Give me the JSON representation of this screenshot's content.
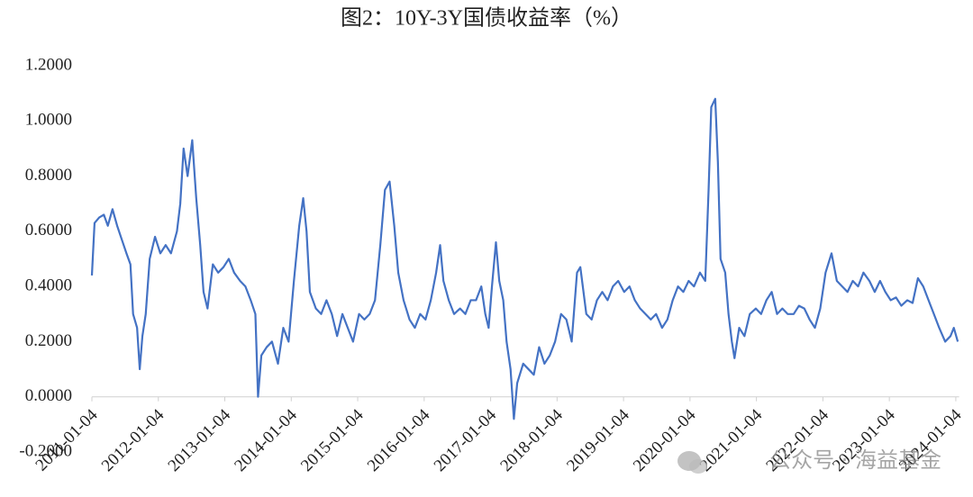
{
  "chart_data": {
    "type": "line",
    "title": "图2：10Y-3Y国债收益率（%）",
    "watermark": "公众号 · 海益基金",
    "color": "#4472c4",
    "x": [
      2011.0,
      2011.04,
      2011.11,
      2011.18,
      2011.24,
      2011.31,
      2011.38,
      2011.45,
      2011.52,
      2011.58,
      2011.62,
      2011.68,
      2011.72,
      2011.76,
      2011.81,
      2011.87,
      2011.95,
      2012.03,
      2012.11,
      2012.19,
      2012.28,
      2012.33,
      2012.38,
      2012.44,
      2012.51,
      2012.57,
      2012.63,
      2012.68,
      2012.74,
      2012.82,
      2012.9,
      2012.98,
      2013.06,
      2013.14,
      2013.23,
      2013.31,
      2013.39,
      2013.46,
      2013.5,
      2013.55,
      2013.63,
      2013.71,
      2013.8,
      2013.88,
      2013.96,
      2014.04,
      2014.12,
      2014.18,
      2014.23,
      2014.28,
      2014.37,
      2014.45,
      2014.53,
      2014.61,
      2014.69,
      2014.77,
      2014.85,
      2014.93,
      2015.02,
      2015.1,
      2015.18,
      2015.26,
      2015.34,
      2015.41,
      2015.48,
      2015.55,
      2015.61,
      2015.69,
      2015.78,
      2015.86,
      2015.94,
      2016.02,
      2016.1,
      2016.18,
      2016.24,
      2016.29,
      2016.37,
      2016.45,
      2016.54,
      2016.62,
      2016.7,
      2016.78,
      2016.86,
      2016.92,
      2016.97,
      2017.02,
      2017.08,
      2017.13,
      2017.19,
      2017.24,
      2017.3,
      2017.35,
      2017.4,
      2017.49,
      2017.57,
      2017.65,
      2017.73,
      2017.81,
      2017.89,
      2017.97,
      2018.06,
      2018.14,
      2018.22,
      2018.3,
      2018.35,
      2018.44,
      2018.52,
      2018.6,
      2018.68,
      2018.76,
      2018.84,
      2018.92,
      2019.01,
      2019.09,
      2019.17,
      2019.25,
      2019.33,
      2019.41,
      2019.49,
      2019.58,
      2019.66,
      2019.74,
      2019.82,
      2019.9,
      2019.98,
      2020.06,
      2020.15,
      2020.23,
      2020.28,
      2020.32,
      2020.38,
      2020.42,
      2020.46,
      2020.53,
      2020.58,
      2020.63,
      2020.67,
      2020.74,
      2020.82,
      2020.9,
      2020.99,
      2021.07,
      2021.15,
      2021.23,
      2021.31,
      2021.39,
      2021.47,
      2021.56,
      2021.64,
      2021.72,
      2021.8,
      2021.88,
      2021.96,
      2022.04,
      2022.13,
      2022.21,
      2022.29,
      2022.37,
      2022.45,
      2022.53,
      2022.61,
      2022.7,
      2022.78,
      2022.86,
      2022.94,
      2023.02,
      2023.1,
      2023.18,
      2023.27,
      2023.35,
      2023.43,
      2023.51,
      2023.59,
      2023.67,
      2023.75,
      2023.84,
      2023.92,
      2023.97,
      2024.03
    ],
    "values": [
      0.44,
      0.63,
      0.65,
      0.66,
      0.62,
      0.68,
      0.62,
      0.57,
      0.52,
      0.48,
      0.3,
      0.25,
      0.1,
      0.22,
      0.3,
      0.5,
      0.58,
      0.52,
      0.55,
      0.52,
      0.6,
      0.7,
      0.9,
      0.8,
      0.93,
      0.72,
      0.55,
      0.38,
      0.32,
      0.48,
      0.45,
      0.47,
      0.5,
      0.45,
      0.42,
      0.4,
      0.35,
      0.3,
      0.0,
      0.15,
      0.18,
      0.2,
      0.12,
      0.25,
      0.2,
      0.42,
      0.62,
      0.72,
      0.6,
      0.38,
      0.32,
      0.3,
      0.35,
      0.3,
      0.22,
      0.3,
      0.25,
      0.2,
      0.3,
      0.28,
      0.3,
      0.35,
      0.55,
      0.75,
      0.78,
      0.62,
      0.45,
      0.35,
      0.28,
      0.25,
      0.3,
      0.28,
      0.35,
      0.45,
      0.55,
      0.42,
      0.35,
      0.3,
      0.32,
      0.3,
      0.35,
      0.35,
      0.4,
      0.3,
      0.25,
      0.4,
      0.56,
      0.42,
      0.35,
      0.2,
      0.1,
      -0.08,
      0.05,
      0.12,
      0.1,
      0.08,
      0.18,
      0.12,
      0.15,
      0.2,
      0.3,
      0.28,
      0.2,
      0.45,
      0.47,
      0.3,
      0.28,
      0.35,
      0.38,
      0.35,
      0.4,
      0.42,
      0.38,
      0.4,
      0.35,
      0.32,
      0.3,
      0.28,
      0.3,
      0.25,
      0.28,
      0.35,
      0.4,
      0.38,
      0.42,
      0.4,
      0.45,
      0.42,
      0.75,
      1.05,
      1.08,
      0.85,
      0.5,
      0.45,
      0.3,
      0.2,
      0.14,
      0.25,
      0.22,
      0.3,
      0.32,
      0.3,
      0.35,
      0.38,
      0.3,
      0.32,
      0.3,
      0.3,
      0.33,
      0.32,
      0.28,
      0.25,
      0.32,
      0.45,
      0.52,
      0.42,
      0.4,
      0.38,
      0.42,
      0.4,
      0.45,
      0.42,
      0.38,
      0.42,
      0.38,
      0.35,
      0.36,
      0.33,
      0.35,
      0.34,
      0.43,
      0.4,
      0.35,
      0.3,
      0.25,
      0.2,
      0.22,
      0.25,
      0.2
    ],
    "xlim": [
      2011,
      2024.05
    ],
    "xticks": [
      {
        "value": 2011,
        "label": "2011-01-04"
      },
      {
        "value": 2012,
        "label": "2012-01-04"
      },
      {
        "value": 2013,
        "label": "2013-01-04"
      },
      {
        "value": 2014,
        "label": "2014-01-04"
      },
      {
        "value": 2015,
        "label": "2015-01-04"
      },
      {
        "value": 2016,
        "label": "2016-01-04"
      },
      {
        "value": 2017,
        "label": "2017-01-04"
      },
      {
        "value": 2018,
        "label": "2018-01-04"
      },
      {
        "value": 2019,
        "label": "2019-01-04"
      },
      {
        "value": 2020,
        "label": "2020-01-04"
      },
      {
        "value": 2021,
        "label": "2021-01-04"
      },
      {
        "value": 2022,
        "label": "2022-01-04"
      },
      {
        "value": 2023,
        "label": "2023-01-04"
      },
      {
        "value": 2024,
        "label": "2024-01-04"
      }
    ],
    "ylim": [
      -0.2,
      1.2
    ],
    "yticks": [
      {
        "value": -0.2,
        "label": "-0.2000"
      },
      {
        "value": 0,
        "label": "0.0000"
      },
      {
        "value": 0.2,
        "label": "0.2000"
      },
      {
        "value": 0.4,
        "label": "0.4000"
      },
      {
        "value": 0.6,
        "label": "0.6000"
      },
      {
        "value": 0.8,
        "label": "0.8000"
      },
      {
        "value": 1.0,
        "label": "1.0000"
      },
      {
        "value": 1.2,
        "label": "1.2000"
      }
    ]
  }
}
